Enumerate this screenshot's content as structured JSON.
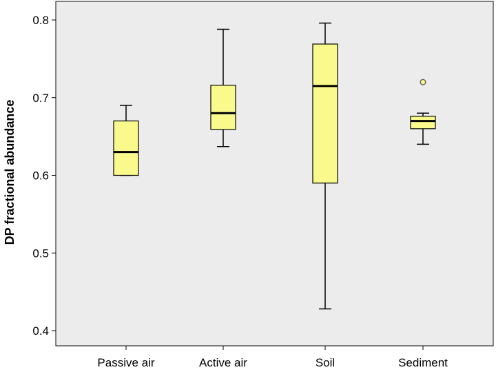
{
  "chart_data": {
    "type": "box",
    "title": "",
    "xlabel": "",
    "ylabel": "DP fractional abundance",
    "ylim": [
      0.38,
      0.82
    ],
    "yticks": [
      "0.4",
      "0.5",
      "0.6",
      "0.7",
      "0.8"
    ],
    "categories": [
      "Passive air",
      "Active air",
      "Soil",
      "Sediment"
    ],
    "boxes": [
      {
        "category": "Passive air",
        "min": 0.6,
        "q1": 0.6,
        "median": 0.63,
        "q3": 0.67,
        "max": 0.69,
        "outliers": []
      },
      {
        "category": "Active air",
        "min": 0.637,
        "q1": 0.659,
        "median": 0.68,
        "q3": 0.716,
        "max": 0.788,
        "outliers": []
      },
      {
        "category": "Soil",
        "min": 0.428,
        "q1": 0.59,
        "median": 0.715,
        "q3": 0.769,
        "max": 0.796,
        "outliers": []
      },
      {
        "category": "Sediment",
        "min": 0.64,
        "q1": 0.66,
        "median": 0.67,
        "q3": 0.676,
        "max": 0.68,
        "outliers": [
          0.72
        ]
      }
    ],
    "box_color": "#fafa8c",
    "background_color": "#ececec",
    "grid": false,
    "legend": "none"
  }
}
